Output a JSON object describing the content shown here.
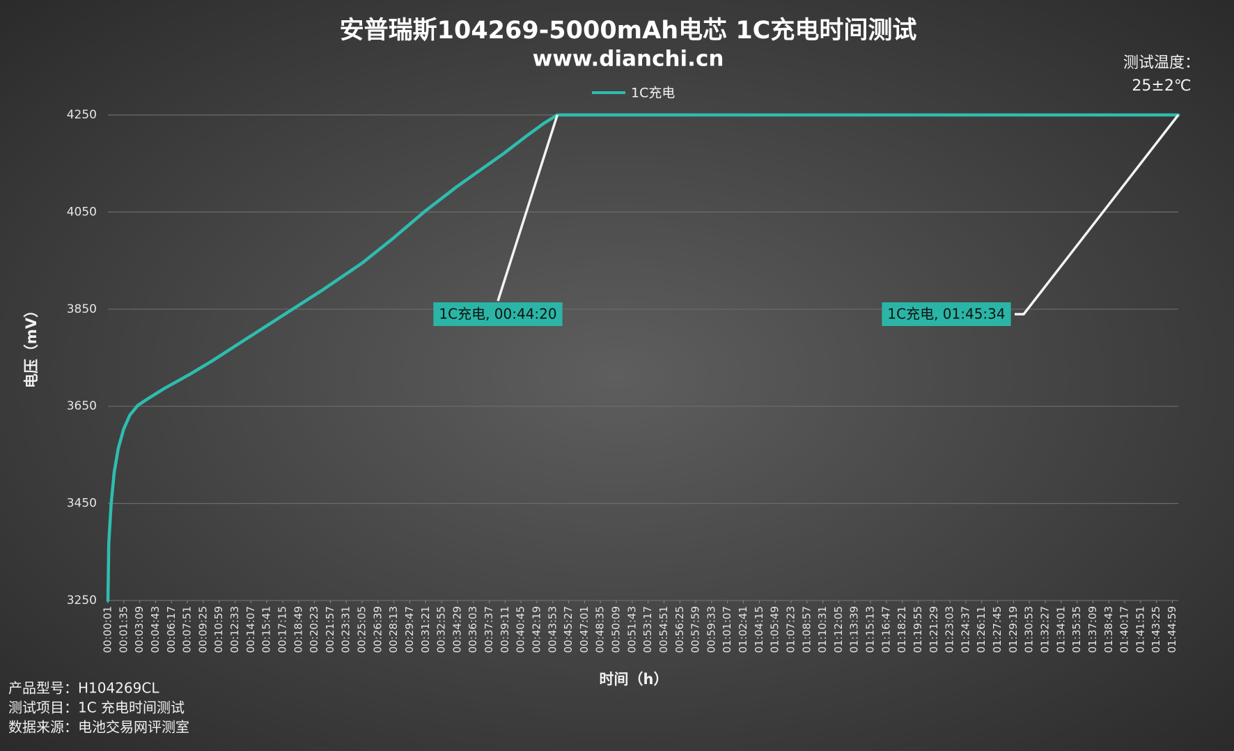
{
  "chart_data": {
    "type": "line",
    "title": "安普瑞斯104269-5000mAh电芯 1C充电时间测试",
    "subtitle": "www.dianchi.cn",
    "x_label": "时间（h）",
    "y_label": "电压（mV）",
    "corner_note": [
      "测试温度：",
      "25±2℃"
    ],
    "notes": [
      "产品型号：H104269CL",
      "测试项目：1C 充电时间测试",
      "数据来源：电池交易网评测室"
    ],
    "legend": "top",
    "grid": true,
    "x": [
      1,
      6,
      20,
      38,
      62,
      94,
      131,
      178,
      248,
      341,
      481,
      620,
      807,
      1040,
      1273,
      1505,
      1692,
      1878,
      2064,
      2344,
      2483,
      2577,
      2660,
      6334
    ],
    "series": [
      {
        "name": "1C充电",
        "color": "#2ebdaf",
        "values": [
          3250,
          3368,
          3449,
          3514,
          3563,
          3603,
          3632,
          3652,
          3668,
          3688,
          3715,
          3744,
          3786,
          3838,
          3890,
          3945,
          3997,
          4052,
          4102,
          4171,
          4208,
          4232,
          4250,
          4250
        ]
      }
    ],
    "annotations": [
      {
        "label": "1C充电, 00:44:20",
        "x": 2660,
        "y": 4250
      },
      {
        "label": "1C充电, 01:45:34",
        "x": 6334,
        "y": 4250
      }
    ],
    "xlim": [
      1,
      6334
    ],
    "ylim": [
      3250,
      4250
    ],
    "yticks": [
      3250,
      3450,
      3650,
      3850,
      4050,
      4250
    ],
    "xticks": [
      {
        "value": 1,
        "label": "00:00:01"
      },
      {
        "value": 95,
        "label": "00:01:35"
      },
      {
        "value": 189,
        "label": "00:03:09"
      },
      {
        "value": 283,
        "label": "00:04:43"
      },
      {
        "value": 377,
        "label": "00:06:17"
      },
      {
        "value": 471,
        "label": "00:07:51"
      },
      {
        "value": 565,
        "label": "00:09:25"
      },
      {
        "value": 659,
        "label": "00:10:59"
      },
      {
        "value": 753,
        "label": "00:12:33"
      },
      {
        "value": 847,
        "label": "00:14:07"
      },
      {
        "value": 941,
        "label": "00:15:41"
      },
      {
        "value": 1035,
        "label": "00:17:15"
      },
      {
        "value": 1129,
        "label": "00:18:49"
      },
      {
        "value": 1223,
        "label": "00:20:23"
      },
      {
        "value": 1317,
        "label": "00:21:57"
      },
      {
        "value": 1411,
        "label": "00:23:31"
      },
      {
        "value": 1505,
        "label": "00:25:05"
      },
      {
        "value": 1599,
        "label": "00:26:39"
      },
      {
        "value": 1693,
        "label": "00:28:13"
      },
      {
        "value": 1787,
        "label": "00:29:47"
      },
      {
        "value": 1881,
        "label": "00:31:21"
      },
      {
        "value": 1975,
        "label": "00:32:55"
      },
      {
        "value": 2069,
        "label": "00:34:29"
      },
      {
        "value": 2163,
        "label": "00:36:03"
      },
      {
        "value": 2257,
        "label": "00:37:37"
      },
      {
        "value": 2351,
        "label": "00:39:11"
      },
      {
        "value": 2445,
        "label": "00:40:45"
      },
      {
        "value": 2539,
        "label": "00:42:19"
      },
      {
        "value": 2633,
        "label": "00:43:53"
      },
      {
        "value": 2727,
        "label": "00:45:27"
      },
      {
        "value": 2821,
        "label": "00:47:01"
      },
      {
        "value": 2915,
        "label": "00:48:35"
      },
      {
        "value": 3009,
        "label": "00:50:09"
      },
      {
        "value": 3103,
        "label": "00:51:43"
      },
      {
        "value": 3197,
        "label": "00:53:17"
      },
      {
        "value": 3291,
        "label": "00:54:51"
      },
      {
        "value": 3385,
        "label": "00:56:25"
      },
      {
        "value": 3479,
        "label": "00:57:59"
      },
      {
        "value": 3573,
        "label": "00:59:33"
      },
      {
        "value": 3667,
        "label": "01:01:07"
      },
      {
        "value": 3761,
        "label": "01:02:41"
      },
      {
        "value": 3855,
        "label": "01:04:15"
      },
      {
        "value": 3949,
        "label": "01:05:49"
      },
      {
        "value": 4043,
        "label": "01:07:23"
      },
      {
        "value": 4137,
        "label": "01:08:57"
      },
      {
        "value": 4231,
        "label": "01:10:31"
      },
      {
        "value": 4325,
        "label": "01:12:05"
      },
      {
        "value": 4419,
        "label": "01:13:39"
      },
      {
        "value": 4513,
        "label": "01:15:13"
      },
      {
        "value": 4607,
        "label": "01:16:47"
      },
      {
        "value": 4701,
        "label": "01:18:21"
      },
      {
        "value": 4795,
        "label": "01:19:55"
      },
      {
        "value": 4889,
        "label": "01:21:29"
      },
      {
        "value": 4983,
        "label": "01:23:03"
      },
      {
        "value": 5077,
        "label": "01:24:37"
      },
      {
        "value": 5171,
        "label": "01:26:11"
      },
      {
        "value": 5265,
        "label": "01:27:45"
      },
      {
        "value": 5359,
        "label": "01:29:19"
      },
      {
        "value": 5453,
        "label": "01:30:53"
      },
      {
        "value": 5547,
        "label": "01:32:27"
      },
      {
        "value": 5641,
        "label": "01:34:01"
      },
      {
        "value": 5735,
        "label": "01:35:35"
      },
      {
        "value": 5829,
        "label": "01:37:09"
      },
      {
        "value": 5923,
        "label": "01:38:43"
      },
      {
        "value": 6017,
        "label": "01:40:17"
      },
      {
        "value": 6111,
        "label": "01:41:51"
      },
      {
        "value": 6205,
        "label": "01:43:25"
      },
      {
        "value": 6299,
        "label": "01:44:59"
      }
    ]
  }
}
